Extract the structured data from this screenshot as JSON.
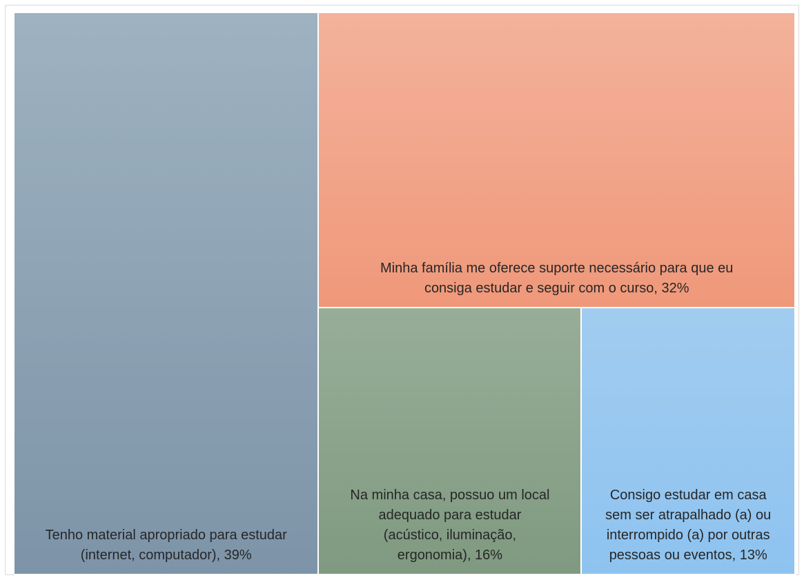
{
  "chart_data": {
    "type": "treemap",
    "title": "",
    "items": [
      {
        "label": "Tenho material apropriado para estudar\n(internet, computador), 39%",
        "name": "Tenho material apropriado para estudar (internet, computador)",
        "value": 39,
        "color_top": "#9eb2c0",
        "color_bottom": "#7d94a8"
      },
      {
        "label": "Minha família me oferece suporte necessário para que eu\nconsiga estudar e seguir com o curso, 32%",
        "name": "Minha família me oferece suporte necessário para que eu consiga estudar e seguir com o curso",
        "value": 32,
        "color_top": "#f3b29b",
        "color_bottom": "#f0987a"
      },
      {
        "label": "Na minha casa, possuo um local\nadequado para estudar\n(acústico, iluminação,\nergonomia), 16%",
        "name": "Na minha casa, possuo um local adequado para estudar (acústico, iluminação, ergonomia)",
        "value": 16,
        "color_top": "#98ad98",
        "color_bottom": "#7f9a80"
      },
      {
        "label": "Consigo estudar em casa\nsem ser atrapalhado (a) ou\ninterrompido (a) por outras\npessoas ou eventos, 13%",
        "name": "Consigo estudar em casa sem ser atrapalhado (a) ou interrompido (a) por outras pessoas ou eventos",
        "value": 13,
        "color_top": "#a1ccf0",
        "color_bottom": "#8ec3f0"
      }
    ]
  }
}
